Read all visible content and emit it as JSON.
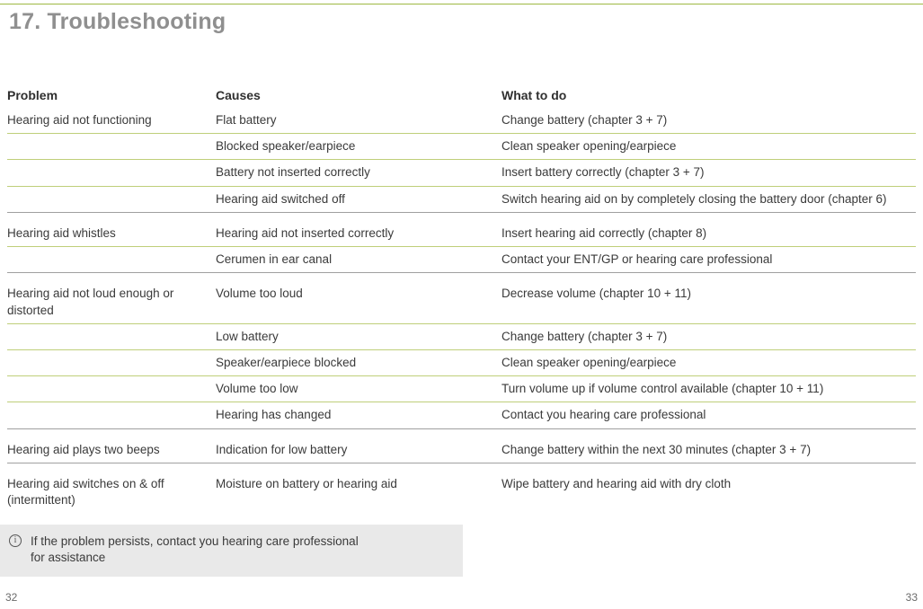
{
  "heading": "17. Troubleshooting",
  "columns": {
    "problem": "Problem",
    "causes": "Causes",
    "action": "What to do"
  },
  "groups": [
    {
      "problem": "Hearing aid not functioning",
      "rows": [
        {
          "cause": "Flat battery",
          "action": "Change battery (chapter 3 + 7)"
        },
        {
          "cause": "Blocked speaker/earpiece",
          "action": "Clean speaker opening/earpiece"
        },
        {
          "cause": "Battery not inserted correctly",
          "action": "Insert battery correctly (chapter 3 + 7)"
        },
        {
          "cause": "Hearing aid switched off",
          "action": "Switch hearing aid on by completely closing the battery door (chapter 6)"
        }
      ]
    },
    {
      "problem": "Hearing aid whistles",
      "rows": [
        {
          "cause": "Hearing aid not inserted correctly",
          "action": "Insert hearing aid correctly (chapter 8)"
        },
        {
          "cause": "Cerumen in ear canal",
          "action": "Contact your ENT/GP or hearing care professional"
        }
      ]
    },
    {
      "problem": "Hearing aid not loud enough or distorted",
      "rows": [
        {
          "cause": "Volume too loud",
          "action": "Decrease volume (chapter 10 + 11)"
        },
        {
          "cause": "Low battery",
          "action": "Change battery (chapter 3 + 7)"
        },
        {
          "cause": "Speaker/earpiece blocked",
          "action": "Clean speaker opening/earpiece"
        },
        {
          "cause": "Volume too low",
          "action": "Turn volume up if volume control available (chapter 10 + 11)"
        },
        {
          "cause": "Hearing has changed",
          "action": "Contact you hearing care professional"
        }
      ]
    },
    {
      "problem": "Hearing aid plays two beeps",
      "rows": [
        {
          "cause": "Indication for low battery",
          "action": "Change battery within the next 30 minutes (chapter 3 + 7)"
        }
      ]
    },
    {
      "problem": "Hearing aid switches on & off (intermittent)",
      "rows": [
        {
          "cause": "Moisture on battery or hearing aid",
          "action": "Wipe battery and hearing aid with dry cloth"
        }
      ]
    }
  ],
  "note": "If the problem persists, contact you hearing care professional for assistance",
  "page_left": "32",
  "page_right": "33",
  "colors": {
    "accent_line": "#9eb942",
    "row_sep": "#bfcf7a",
    "section_sep": "#a0a0a0",
    "heading": "#8f8f8f",
    "text": "#3a3a3a",
    "note_bg": "#e9e9e9"
  }
}
